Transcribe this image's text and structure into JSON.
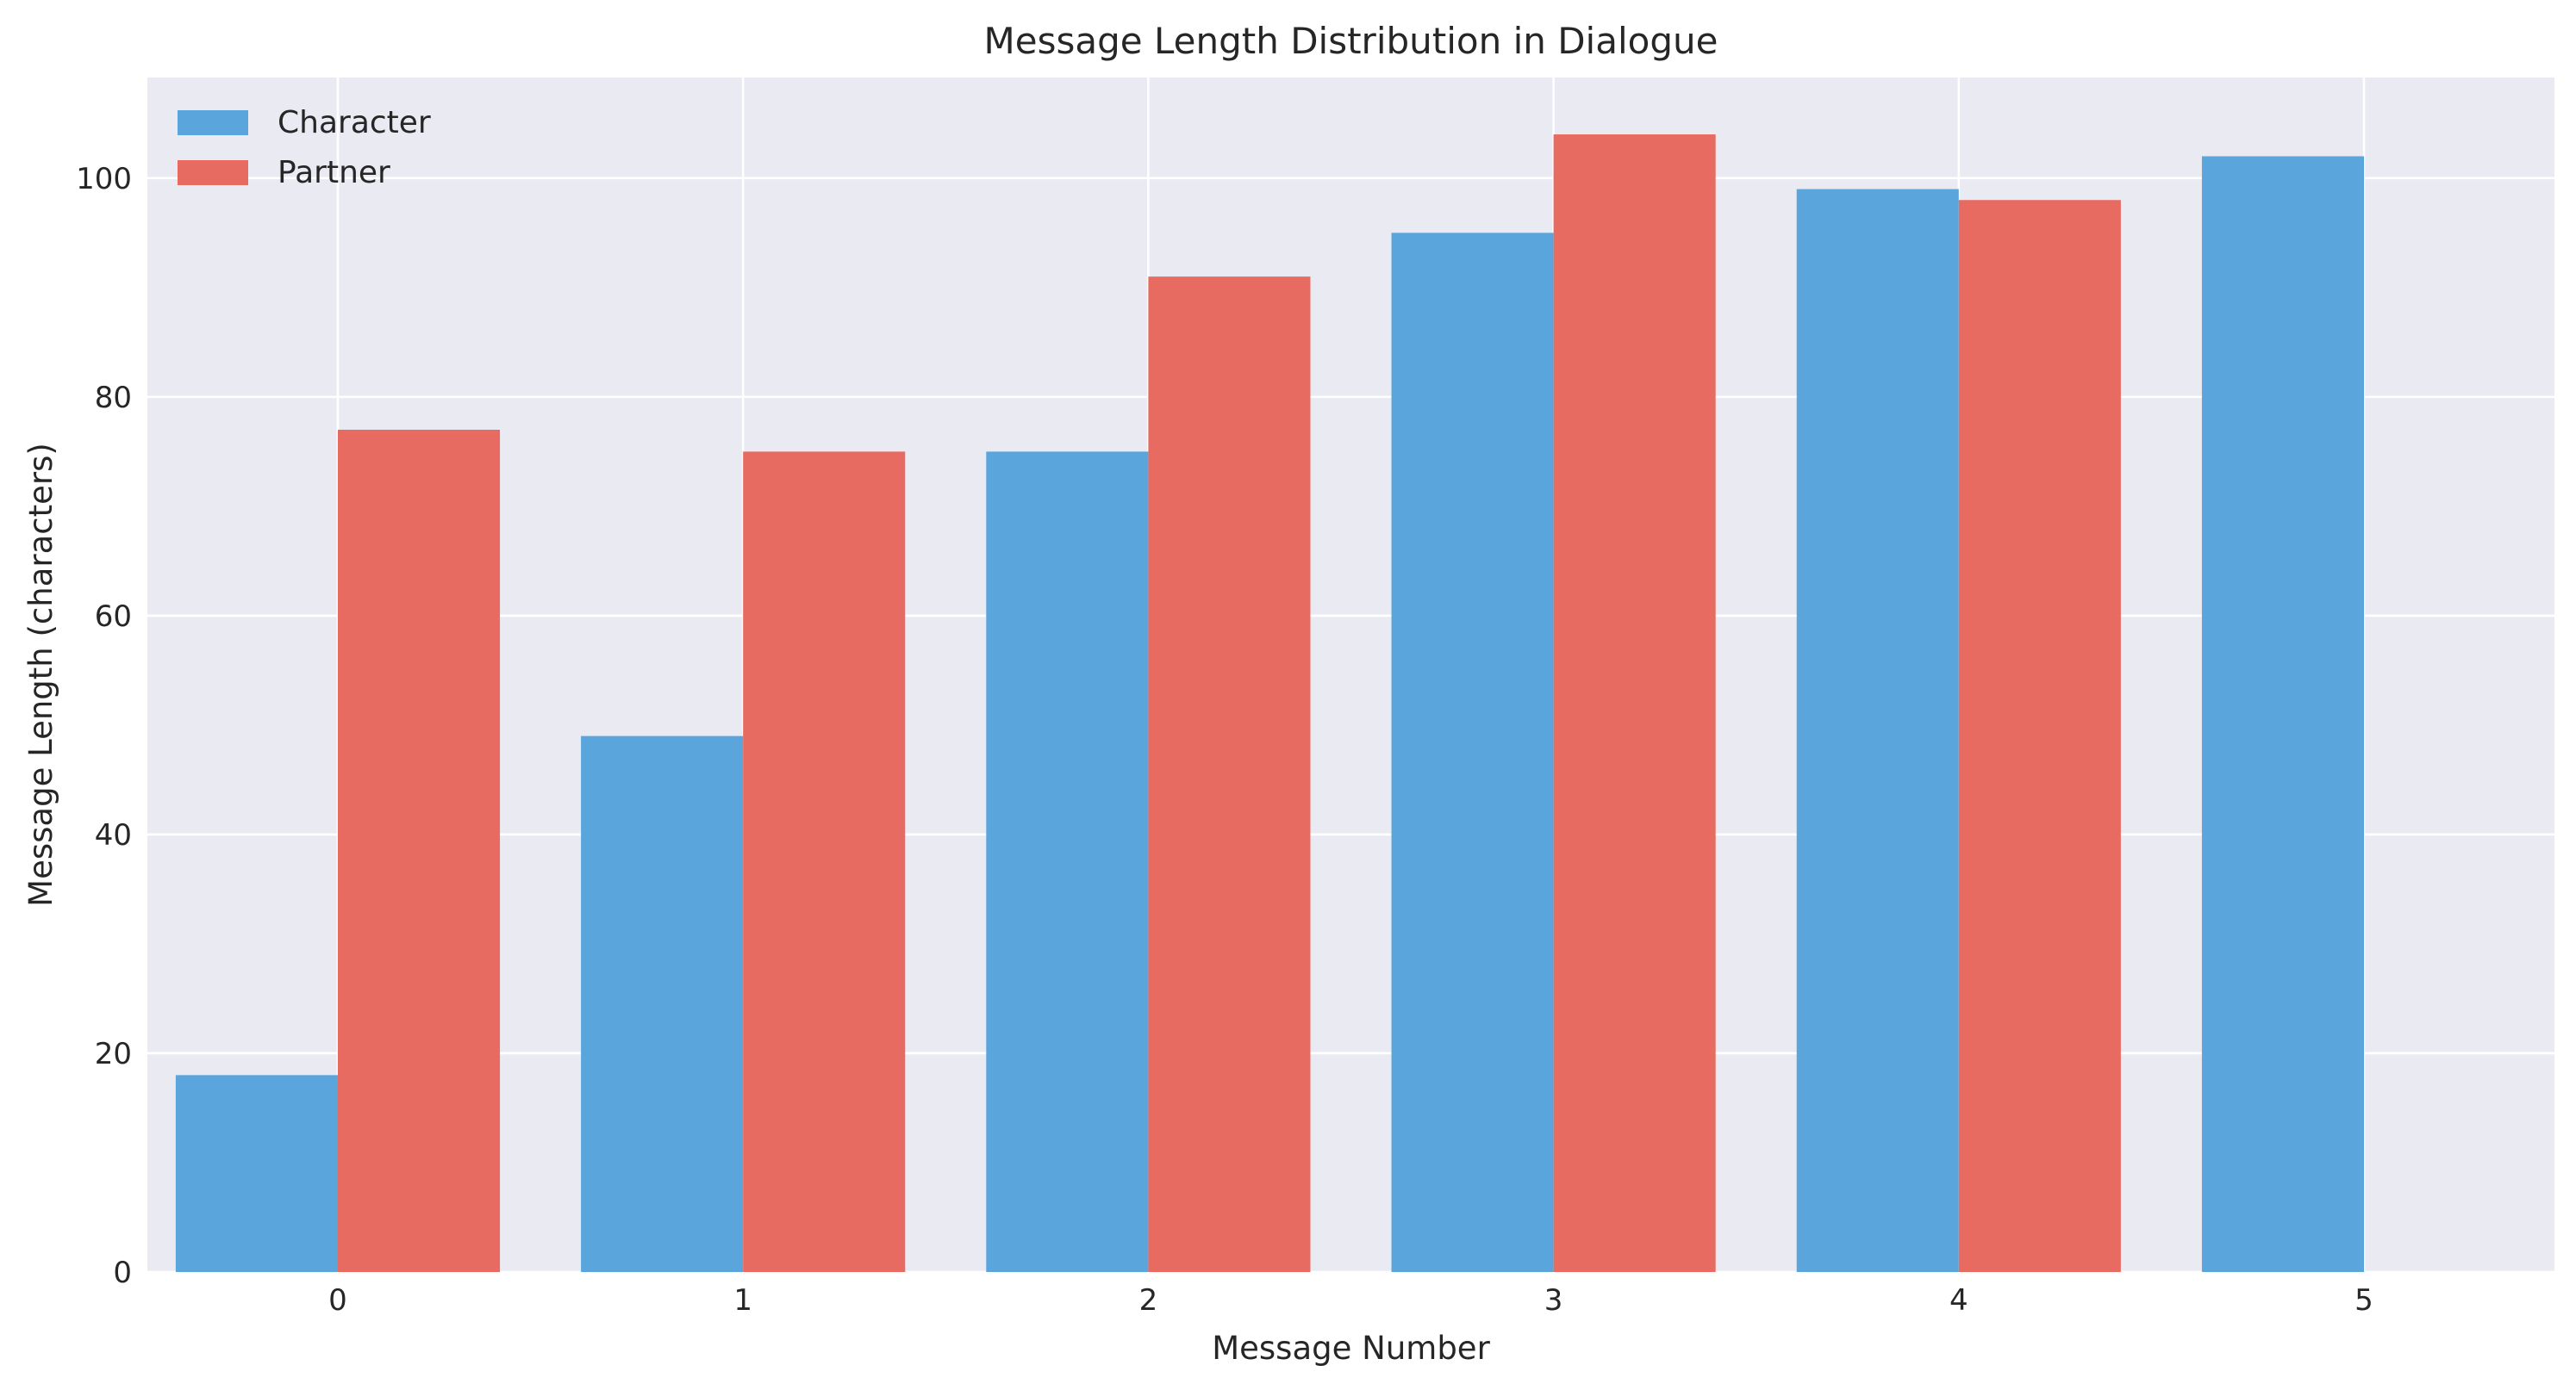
{
  "chart_data": {
    "type": "bar",
    "title": "Message Length Distribution in Dialogue",
    "xlabel": "Message Number",
    "ylabel": "Message Length (characters)",
    "categories": [
      "0",
      "1",
      "2",
      "3",
      "4",
      "5"
    ],
    "series": [
      {
        "name": "Character",
        "color": "#5aa6dc",
        "values": [
          18,
          49,
          75,
          95,
          99,
          102
        ]
      },
      {
        "name": "Partner",
        "color": "#e86b62",
        "values": [
          77,
          75,
          91,
          104,
          98,
          null
        ]
      }
    ],
    "ylim": [
      0,
      109.2
    ],
    "yticks": [
      0,
      20,
      40,
      60,
      80,
      100
    ],
    "xlim": [
      -0.47,
      5.47
    ],
    "grid": true,
    "legend_position": "top-left",
    "plot_background": "#eaeaf2",
    "grid_color": "#ffffff"
  }
}
